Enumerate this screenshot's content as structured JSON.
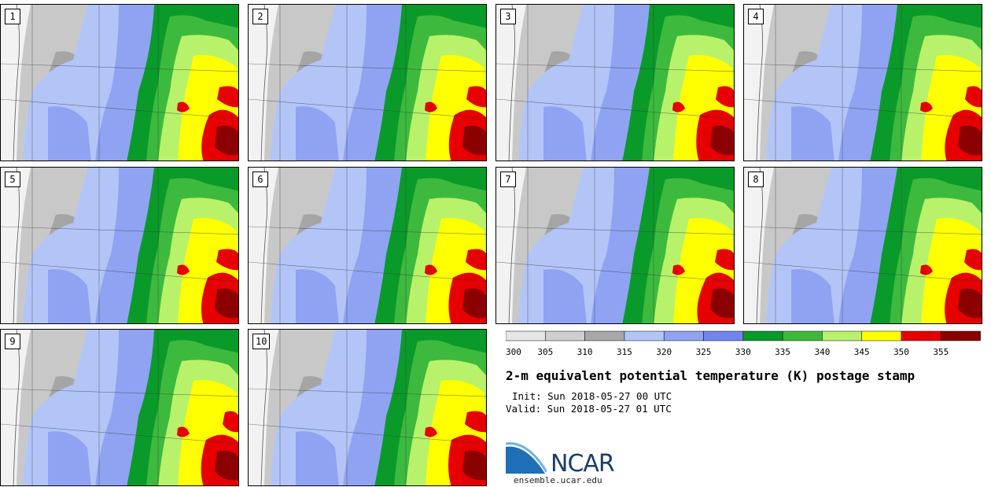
{
  "panels": [
    {
      "label": "1"
    },
    {
      "label": "2"
    },
    {
      "label": "3"
    },
    {
      "label": "4"
    },
    {
      "label": "5"
    },
    {
      "label": "6"
    },
    {
      "label": "7"
    },
    {
      "label": "8"
    },
    {
      "label": "9"
    },
    {
      "label": "10"
    }
  ],
  "colorbar": {
    "ticks": [
      "300",
      "305",
      "310",
      "315",
      "320",
      "325",
      "330",
      "335",
      "340",
      "345",
      "350",
      "355"
    ],
    "colors": [
      "#e6e6e6",
      "#cfcfcf",
      "#a8a8a8",
      "#b3c4f7",
      "#8fa3f2",
      "#7384ee",
      "#0a9a2a",
      "#3dba3d",
      "#b8f26a",
      "#ffff00",
      "#e60000",
      "#8b0000"
    ]
  },
  "title": "2-m equivalent potential temperature (K) postage stamp",
  "init": "Init: Sun 2018-05-27 00 UTC",
  "valid": "Valid: Sun 2018-05-27 01 UTC",
  "logo": {
    "text": "NCAR",
    "site": "ensemble.ucar.edu"
  }
}
